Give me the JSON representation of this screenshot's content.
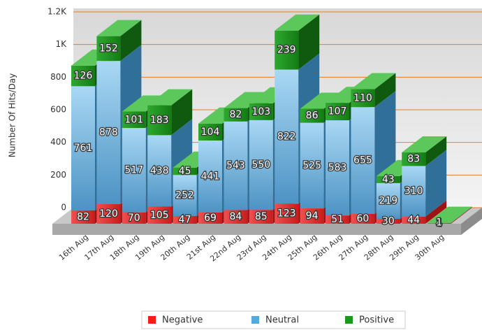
{
  "chart_data": {
    "type": "bar3d_stacked",
    "y_axis_label": "Number Of Hits/Day",
    "categories": [
      "16th Aug",
      "17th Aug",
      "18th Aug",
      "19th Aug",
      "20th Aug",
      "21st Aug",
      "22nd Aug",
      "23rd Aug",
      "24th Aug",
      "25th Aug",
      "26th Aug",
      "27th Aug",
      "28th Aug",
      "29th Aug",
      "30th Aug"
    ],
    "series": [
      {
        "name": "Negative",
        "color": "#ff1a1a",
        "values": [
          82,
          120,
          70,
          105,
          47,
          69,
          84,
          85,
          123,
          94,
          51,
          60,
          30,
          44,
          4
        ]
      },
      {
        "name": "Neutral",
        "color": "#55a9dc",
        "values": [
          761,
          878,
          517,
          438,
          252,
          441,
          543,
          550,
          822,
          525,
          583,
          655,
          219,
          310,
          1
        ]
      },
      {
        "name": "Positive",
        "color": "#1a9a1a",
        "values": [
          126,
          152,
          101,
          183,
          45,
          104,
          82,
          103,
          239,
          86,
          107,
          110,
          43,
          83,
          1
        ]
      }
    ],
    "ylim": [
      0,
      1200
    ],
    "yticks": [
      0,
      200,
      400,
      600,
      800,
      {
        "value": 1000,
        "label": "1K"
      },
      {
        "value": 1200,
        "label": "1.2K"
      }
    ],
    "grid": true,
    "legend": "bottom"
  }
}
